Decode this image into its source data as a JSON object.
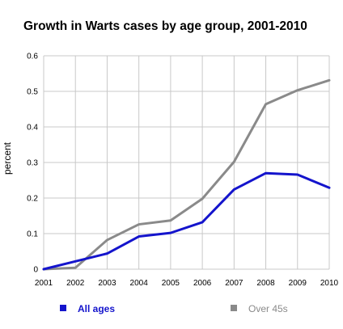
{
  "chart_data": {
    "type": "line",
    "title": "Growth in Warts cases by age group, 2001-2010",
    "xlabel": "",
    "ylabel": "percent",
    "x": [
      "2001",
      "2002",
      "2003",
      "2004",
      "2005",
      "2006",
      "2007",
      "2008",
      "2009",
      "2010"
    ],
    "ylim": [
      0,
      0.6
    ],
    "yticks": [
      "0",
      "0.1",
      "0.2",
      "0.3",
      "0.4",
      "0.5",
      "0.6"
    ],
    "grid": true,
    "legend_position": "bottom",
    "series": [
      {
        "name": "All ages",
        "color": "#1414cc",
        "values": [
          0,
          0.022,
          0.044,
          0.092,
          0.102,
          0.132,
          0.224,
          0.27,
          0.266,
          0.229
        ]
      },
      {
        "name": "Over 45s",
        "color": "#8a8a8a",
        "values": [
          0,
          0.004,
          0.082,
          0.126,
          0.137,
          0.198,
          0.302,
          0.464,
          0.503,
          0.531
        ]
      }
    ]
  }
}
